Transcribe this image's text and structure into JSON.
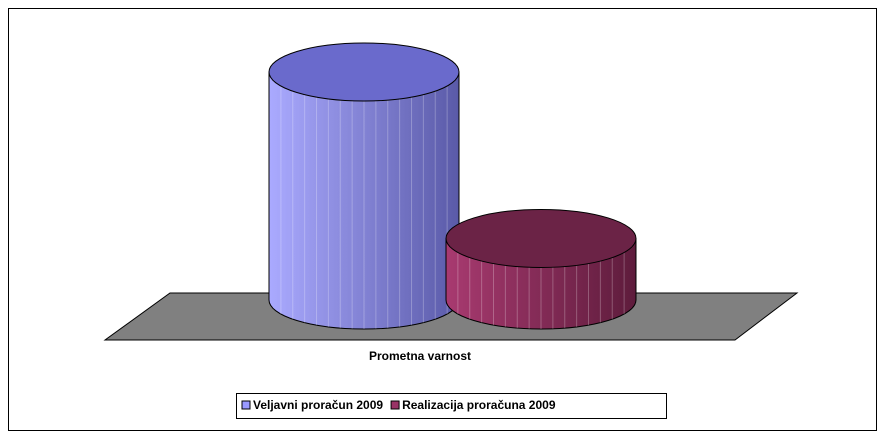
{
  "chart_data": {
    "type": "cylinder-bar",
    "categories": [
      "Prometna varnost"
    ],
    "series": [
      {
        "name": "Veljavni proračun 2009",
        "color": "#9999ff",
        "values": [
          100
        ]
      },
      {
        "name": "Realizacija proračuna 2009",
        "color": "#993366",
        "values": [
          27
        ]
      }
    ]
  }
}
